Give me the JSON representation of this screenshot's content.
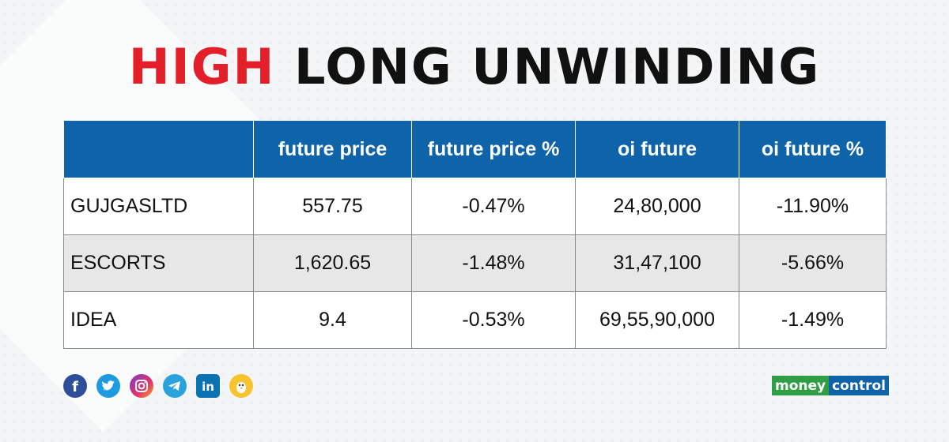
{
  "title": {
    "part1": "HIGH",
    "part2": "LONG UNWINDING"
  },
  "table": {
    "headers": [
      "",
      "future price",
      "future price %",
      "oi future",
      "oi future %"
    ],
    "rows": [
      [
        "GUJGASLTD",
        "557.75",
        "-0.47%",
        "24,80,000",
        "-11.90%"
      ],
      [
        "ESCORTS",
        "1,620.65",
        "-1.48%",
        "31,47,100",
        "-5.66%"
      ],
      [
        "IDEA",
        "9.4",
        "-0.53%",
        "69,55,90,000",
        "-1.49%"
      ]
    ]
  },
  "social": {
    "icons": [
      "facebook-icon",
      "twitter-icon",
      "instagram-icon",
      "telegram-icon",
      "linkedin-icon",
      "koo-icon"
    ]
  },
  "logo": {
    "part1": "money",
    "part2": "control"
  },
  "colors": {
    "title_red": "#e3202a",
    "header_blue": "#0f63a8",
    "row_alt": "#e7e7e7",
    "logo_green": "#2f9e47"
  }
}
